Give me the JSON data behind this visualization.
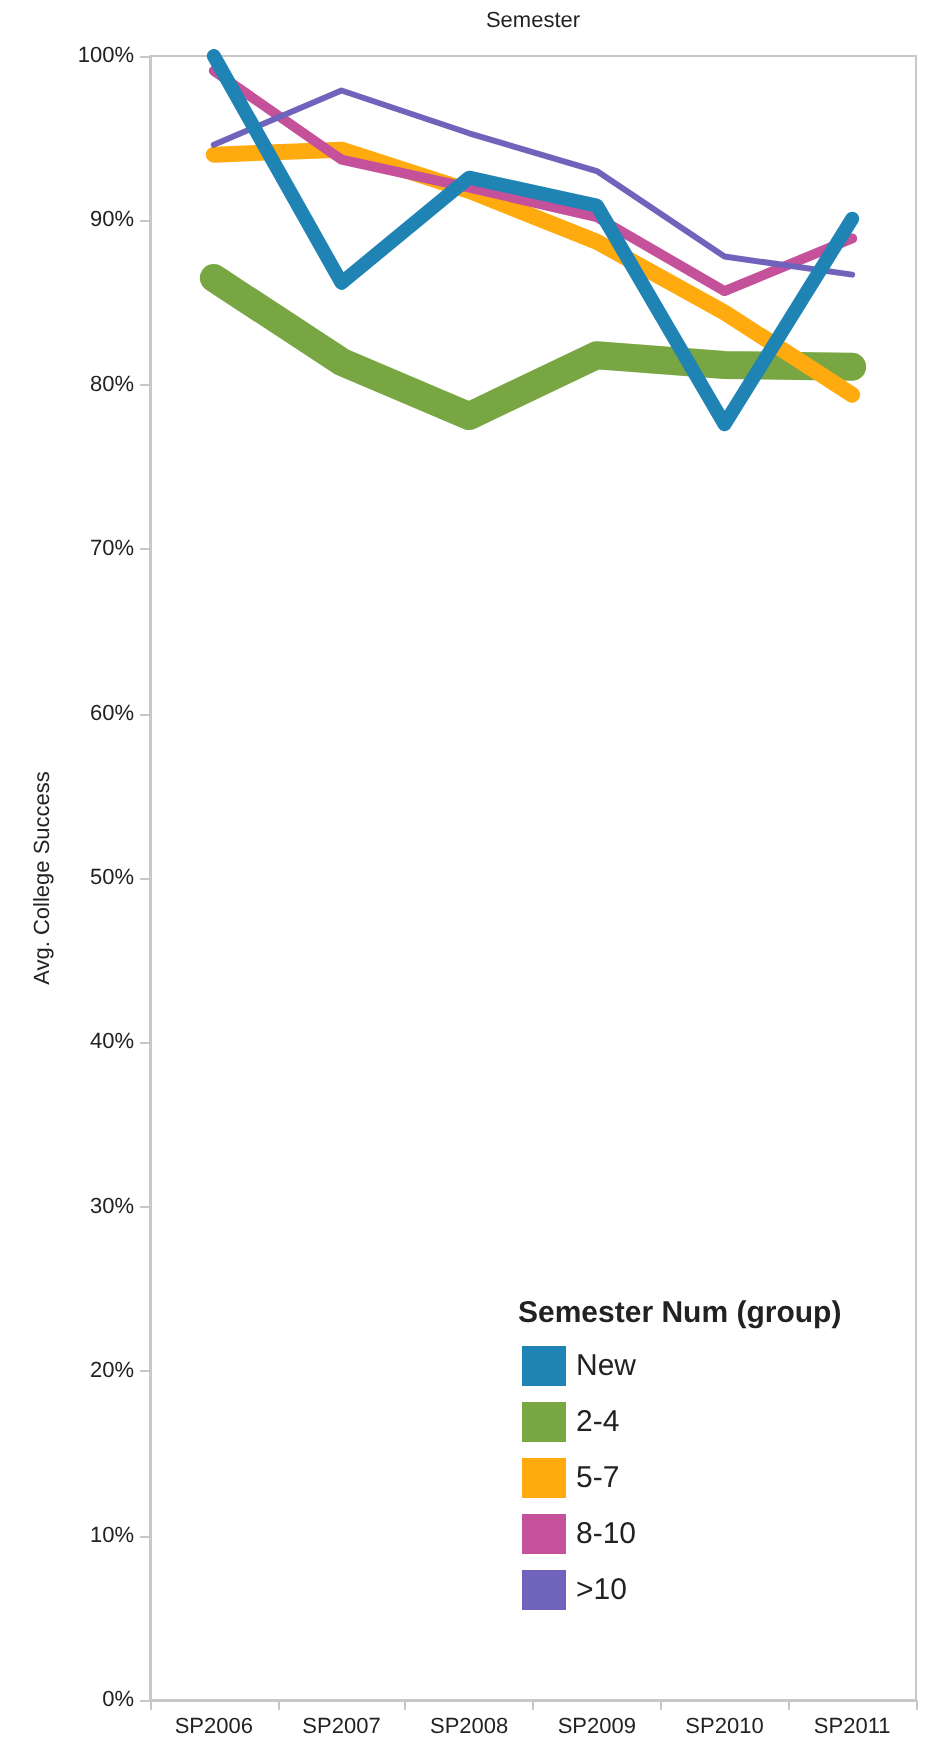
{
  "chart_data": {
    "type": "line",
    "xlabel": "Semester",
    "ylabel": "Avg. College Success",
    "legend_title": "Semester Num (group)",
    "categories": [
      "SP2006",
      "SP2007",
      "SP2008",
      "SP2009",
      "SP2010",
      "SP2011"
    ],
    "series": [
      {
        "name": "New",
        "color": "#1f83b4",
        "values": [
          100,
          86.2,
          92.6,
          90.9,
          77.6,
          90.1
        ]
      },
      {
        "name": "2-4",
        "color": "#78a642",
        "values": [
          86.5,
          81.4,
          78.1,
          81.8,
          81.2,
          81.1
        ]
      },
      {
        "name": "5-7",
        "color": "#ffaa0e",
        "values": [
          94.0,
          94.3,
          91.8,
          88.7,
          84.4,
          79.4
        ]
      },
      {
        "name": "8-10",
        "color": "#c4519a",
        "values": [
          99.1,
          93.7,
          92.0,
          90.2,
          85.7,
          88.9
        ]
      },
      {
        "name": ">10",
        "color": "#6f63bb",
        "values": [
          94.6,
          97.9,
          95.3,
          93.0,
          87.8,
          86.7
        ]
      }
    ],
    "ylim": [
      0,
      100
    ],
    "yticks": [
      {
        "value": 0,
        "label": "0%"
      },
      {
        "value": 10,
        "label": "10%"
      },
      {
        "value": 20,
        "label": "20%"
      },
      {
        "value": 30,
        "label": "30%"
      },
      {
        "value": 40,
        "label": "40%"
      },
      {
        "value": 50,
        "label": "50%"
      },
      {
        "value": 60,
        "label": "60%"
      },
      {
        "value": 70,
        "label": "70%"
      },
      {
        "value": 80,
        "label": "80%"
      },
      {
        "value": 90,
        "label": "90%"
      },
      {
        "value": 100,
        "label": "100%"
      }
    ],
    "grid": false,
    "legend": "bottom right",
    "marker": "none",
    "line_style": "solid"
  }
}
